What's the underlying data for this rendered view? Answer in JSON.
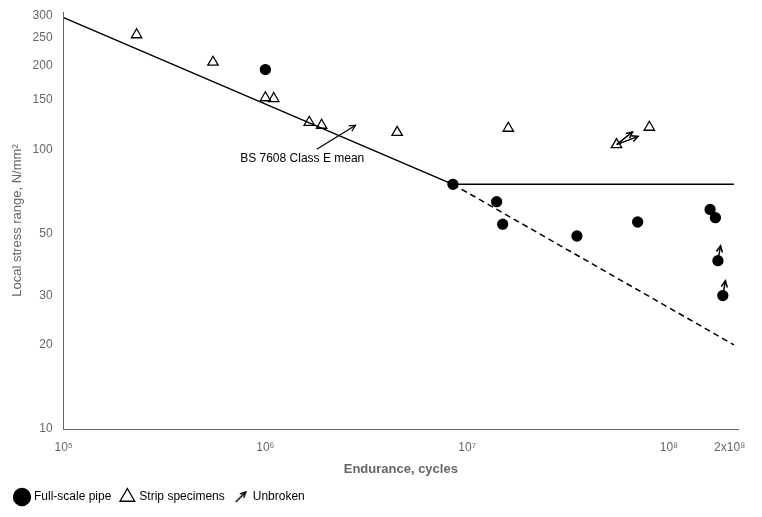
{
  "chart_data": {
    "type": "scatter",
    "log": true,
    "xlabel": "Endurance, cycles",
    "ylabel": "Local stress range, N/mm²",
    "xlim": [
      100000.0,
      220000000.0
    ],
    "ylim": [
      10,
      310
    ],
    "xticks": [
      {
        "value": 100000.0,
        "label": "10⁵"
      },
      {
        "value": 1000000.0,
        "label": "10⁶"
      },
      {
        "value": 10000000.0,
        "label": "10⁷"
      },
      {
        "value": 100000000.0,
        "label": "10⁸"
      },
      {
        "value": 200000000.0,
        "label": "2x10⁸"
      }
    ],
    "yticks": [
      10,
      20,
      30,
      50,
      100,
      150,
      200,
      250,
      300
    ],
    "grid": false,
    "legend": "lower left",
    "series": [
      {
        "type": "line",
        "line_style": "solid",
        "color": "black",
        "x": [
          100000.0,
          8500000.0
        ],
        "values": [
          296,
          75
        ]
      },
      {
        "type": "line",
        "line_style": "solid",
        "color": "black",
        "x": [
          8500000.0,
          210000000.0
        ],
        "values": [
          75,
          75
        ]
      },
      {
        "type": "line",
        "line_style": "dashed",
        "color": "black",
        "x": [
          8500000.0,
          210000000.0
        ],
        "values": [
          75,
          20
        ]
      },
      {
        "name": "Full-scale pipe",
        "type": "scatter",
        "marker": "circle",
        "color": "black",
        "x": [
          1000000.0,
          8500000.0,
          14000000.0,
          15000000.0,
          35000000.0,
          70000000.0,
          160000000.0,
          170000000.0,
          175000000.0,
          185000000.0
        ],
        "values": [
          193,
          75,
          65,
          54,
          49,
          55,
          61,
          57,
          40,
          30
        ]
      },
      {
        "name": "Strip specimens",
        "type": "scatter",
        "marker": "triangle_open",
        "color": "black",
        "x": [
          230000.0,
          550000.0,
          1000000.0,
          1100000.0,
          1650000.0,
          1900000.0,
          4500000.0,
          16000000.0,
          80000000.0,
          55000000.0
        ],
        "values": [
          257,
          205,
          153,
          152,
          125,
          122,
          115,
          119,
          120,
          104
        ]
      },
      {
        "name": "Unbroken",
        "type": "arrow",
        "marker": "arrow",
        "color": "black",
        "x": [
          175000000.0,
          185000000.0,
          55000000.0,
          55000000.0
        ],
        "values": [
          40,
          30,
          104,
          104
        ],
        "x_end": [
          180250000.0,
          190550000.0,
          70400000.0,
          66000000.0
        ],
        "values_end": [
          45.2,
          33.9,
          111.28,
          115.44
        ]
      }
    ],
    "annotations": [
      {
        "text": "BS 7608 Class E mean",
        "x": 750000.0,
        "y": 93,
        "arrow_x": 2800000.0,
        "arrow_y": 122
      }
    ]
  }
}
